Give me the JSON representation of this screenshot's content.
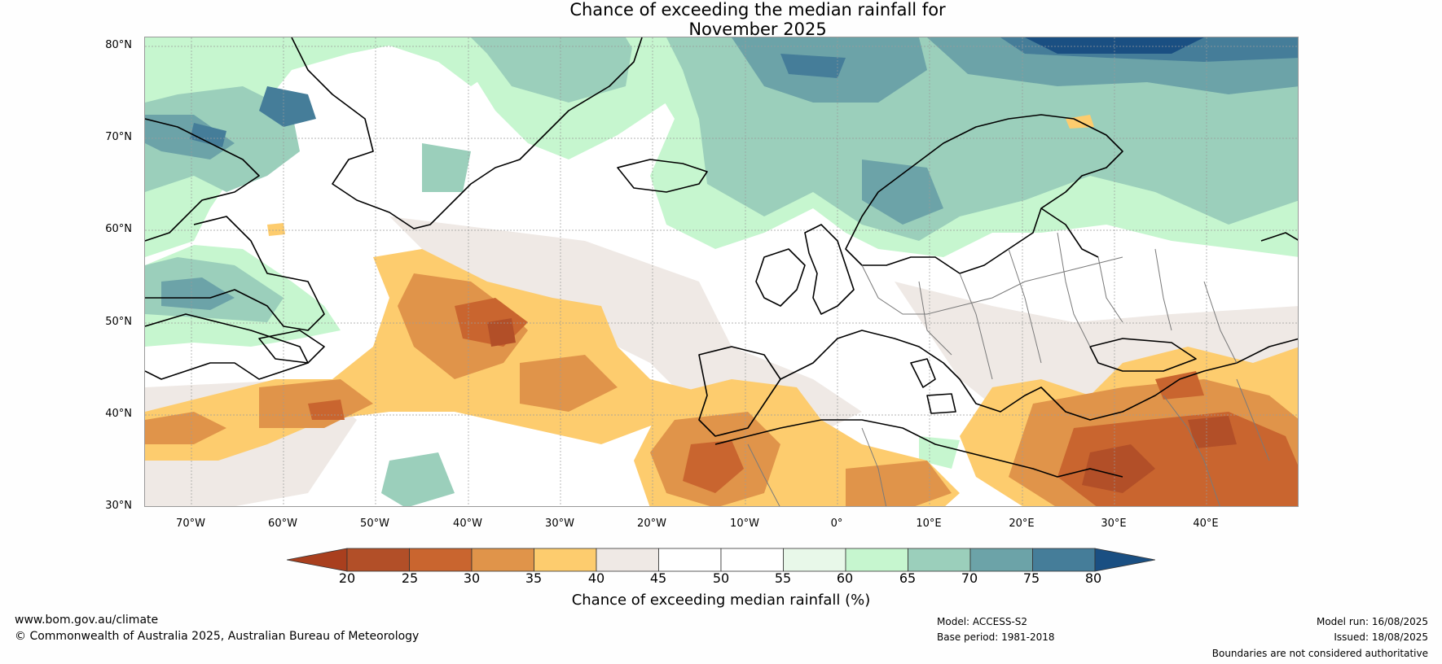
{
  "title_line1": "Chance of exceeding the median rainfall for",
  "title_line2": "November 2025",
  "map": {
    "extent": {
      "lon": [
        -75,
        50
      ],
      "lat": [
        30,
        80
      ]
    },
    "lat_labels": [
      "80°N",
      "70°N",
      "60°N",
      "50°N",
      "40°N",
      "30°N"
    ],
    "lon_labels": [
      "70°W",
      "60°W",
      "50°W",
      "40°W",
      "30°W",
      "20°W",
      "10°W",
      "0°",
      "10°E",
      "20°E",
      "30°E",
      "40°E"
    ],
    "gridlines": true
  },
  "colorbar": {
    "ticks": [
      "20",
      "25",
      "30",
      "35",
      "40",
      "45",
      "50",
      "55",
      "60",
      "65",
      "70",
      "75",
      "80"
    ],
    "colors": [
      "#a93f1e",
      "#b24f28",
      "#c9652f",
      "#e0944a",
      "#fdcc6e",
      "#efe9e5",
      "#ffffff",
      "#ffffff",
      "#e8f8e9",
      "#c6f6cf",
      "#9bcfbb",
      "#6ca3a8",
      "#457d99",
      "#1a4f82"
    ],
    "label": "Chance of exceeding median rainfall (%)"
  },
  "footer": {
    "website": "www.bom.gov.au/climate",
    "copyright": "© Commonwealth of Australia 2025, Australian Bureau of Meteorology",
    "model": "Model: ACCESS-S2",
    "base_period": "Base period: 1981-2018",
    "model_run": "Model run: 16/08/2025",
    "issued": "Issued: 18/08/2025",
    "disclaimer": "Boundaries are not considered authoritative"
  }
}
